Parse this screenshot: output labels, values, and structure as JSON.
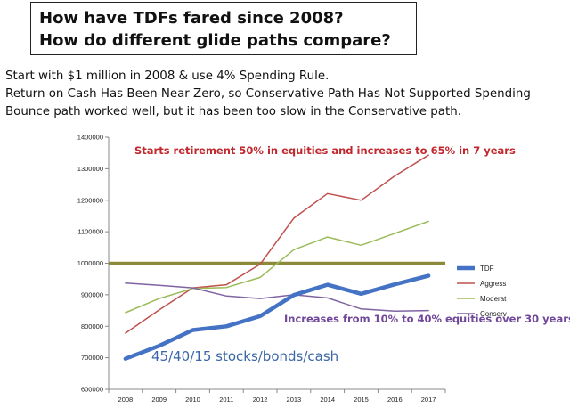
{
  "title": {
    "line1": "How have TDFs fared since 2008?",
    "line2": "How do different glide paths compare?"
  },
  "intro": {
    "line1": "Start with $1 million in 2008 & use 4% Spending Rule.",
    "line2": "Return on Cash Has Been Near Zero, so Conservative Path Has Not Supported Spending",
    "line3": "Bounce path worked well, but it has been too slow in the Conservative path."
  },
  "chart_data": {
    "type": "line",
    "title": "",
    "xlabel": "",
    "ylabel": "",
    "x": [
      2008,
      2009,
      2010,
      2011,
      2012,
      2013,
      2014,
      2015,
      2016,
      2017
    ],
    "ylim": [
      600000,
      1400000
    ],
    "yticks": [
      600000,
      700000,
      800000,
      900000,
      1000000,
      1100000,
      1200000,
      1300000,
      1400000
    ],
    "grid": false,
    "legend_position": "right",
    "reference_line": {
      "y": 1000000,
      "color": "#8c8a3a"
    },
    "series": [
      {
        "name": "TDF",
        "color": "#4472c4",
        "width": "thick",
        "values": [
          697000,
          738000,
          788000,
          800000,
          832000,
          899000,
          932000,
          903000,
          933000,
          960000
        ]
      },
      {
        "name": "Aggress",
        "color": "#c0504d",
        "width": "thin",
        "values": [
          778000,
          852000,
          922000,
          932000,
          997000,
          1143000,
          1221000,
          1200000,
          1277000,
          1343000
        ]
      },
      {
        "name": "Moderat",
        "color": "#9bbb59",
        "width": "thin",
        "values": [
          843000,
          888000,
          920000,
          923000,
          955000,
          1043000,
          1083000,
          1057000,
          1095000,
          1133000
        ]
      },
      {
        "name": "Conserv",
        "color": "#8064a2",
        "width": "thin",
        "values": [
          937000,
          930000,
          922000,
          896000,
          888000,
          900000,
          890000,
          855000,
          848000,
          850000
        ]
      }
    ],
    "annotations": {
      "aggressive": "Starts retirement 50% in equities and increases to 65% in 7 years",
      "conservative": "Increases from 10% to 40% equities over 30 years",
      "tdf": "45/40/15  stocks/bonds/cash"
    }
  }
}
